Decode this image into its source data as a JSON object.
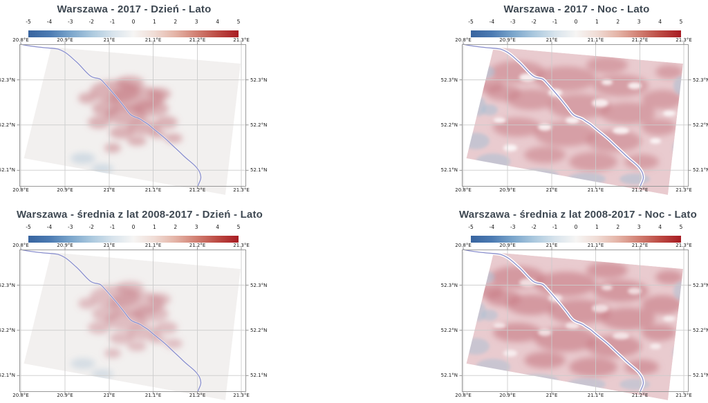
{
  "figure": {
    "panels": [
      {
        "title": "Warszawa - 2017 - Dzień - Lato",
        "variant": "day",
        "period": "2017",
        "time_of_day": "Dzień",
        "season": "Lato"
      },
      {
        "title": "Warszawa - 2017 - Noc - Lato",
        "variant": "night",
        "period": "2017",
        "time_of_day": "Noc",
        "season": "Lato"
      },
      {
        "title": "Warszawa - średnia z lat 2008-2017 - Dzień - Lato",
        "variant": "day",
        "period": "średnia z lat 2008-2017",
        "time_of_day": "Dzień",
        "season": "Lato"
      },
      {
        "title": "Warszawa - średnia z lat 2008-2017 - Noc - Lato",
        "variant": "night",
        "period": "średnia z lat 2008-2017",
        "time_of_day": "Noc",
        "season": "Lato"
      }
    ],
    "colorbar": {
      "ticks": [
        "-5",
        "-4",
        "-3",
        "-2",
        "-1",
        "0",
        "1",
        "2",
        "3",
        "4",
        "5"
      ]
    },
    "axes": {
      "lon_labels": [
        "20.8°E",
        "20.9°E",
        "21°E",
        "21.1°E",
        "21.2°E",
        "21.3°E"
      ],
      "lat_labels": [
        "52.3°N",
        "52.2°N",
        "52.1°N"
      ]
    }
  },
  "colors": {
    "background": "#ffffff",
    "title_text": "#3e4852",
    "tick_text": "#1a1a1a",
    "grid_line": "#cccccc",
    "plot_frame": "#999999",
    "river": "#8287c9",
    "colorbar_left_end": "#38649f",
    "colorbar_zero": "#f6f5f4",
    "colorbar_right_end": "#a81c23",
    "day_swath": "#f2f0ef",
    "night_swath": "#e9cbcf",
    "heat_pink": "#c4737d",
    "cool_blue": "#a9c0d4"
  },
  "chart_data": [
    {
      "type": "heatmap",
      "title": "Warszawa - 2017 - Dzień - Lato",
      "colorbar": {
        "range": [
          -5,
          5
        ],
        "ticks": [
          -5,
          -4,
          -3,
          -2,
          -1,
          0,
          1,
          2,
          3,
          4,
          5
        ],
        "colormap": "blue-white-red diverging (RdBu reversed)",
        "position": "top"
      },
      "x_axis": {
        "ticks": [
          "20.8°E",
          "20.9°E",
          "21°E",
          "21.1°E",
          "21.2°E",
          "21.3°E"
        ],
        "range_approx": [
          20.79,
          21.31
        ]
      },
      "y_axis": {
        "ticks": [
          "52.3°N",
          "52.2°N",
          "52.1°N"
        ],
        "range_approx": [
          52.05,
          52.37
        ]
      },
      "grid": true,
      "overlay": "Vistula river polyline crossing NW to SE",
      "pattern": "rotated satellite swath, mostly near 0; faint warm anomaly ≈ +0.5 to +1.5 clustered over central Warsaw"
    },
    {
      "type": "heatmap",
      "title": "Warszawa - 2017 - Noc - Lato",
      "colorbar": {
        "range": [
          -5,
          5
        ],
        "ticks": [
          -5,
          -4,
          -3,
          -2,
          -1,
          0,
          1,
          2,
          3,
          4,
          5
        ],
        "colormap": "blue-white-red diverging (RdBu reversed)",
        "position": "top"
      },
      "x_axis": {
        "ticks": [
          "20.8°E",
          "20.9°E",
          "21°E",
          "21.1°E",
          "21.2°E",
          "21.3°E"
        ],
        "range_approx": [
          20.79,
          21.31
        ]
      },
      "y_axis": {
        "ticks": [
          "52.3°N",
          "52.2°N",
          "52.1°N"
        ],
        "range_approx": [
          52.05,
          52.37
        ]
      },
      "grid": true,
      "overlay": "Vistula river polyline with pale corridor",
      "pattern": "widespread warm anomaly ≈ +1 to +2 over urban area; cool patches ≈ -1 near swath edges; white gaps along river"
    },
    {
      "type": "heatmap",
      "title": "Warszawa - średnia z lat 2008-2017 - Dzień - Lato",
      "colorbar": {
        "range": [
          -5,
          5
        ],
        "ticks": [
          -5,
          -4,
          -3,
          -2,
          -1,
          0,
          1,
          2,
          3,
          4,
          5
        ],
        "colormap": "blue-white-red diverging (RdBu reversed)",
        "position": "top"
      },
      "x_axis": {
        "ticks": [
          "20.8°E",
          "20.9°E",
          "21°E",
          "21.1°E",
          "21.2°E",
          "21.3°E"
        ],
        "range_approx": [
          20.79,
          21.31
        ]
      },
      "y_axis": {
        "ticks": [
          "52.3°N",
          "52.2°N",
          "52.1°N"
        ],
        "range_approx": [
          52.05,
          52.37
        ]
      },
      "grid": true,
      "overlay": "Vistula river polyline",
      "pattern": "very faint warm anomaly ≈ +0.5 over central Warsaw; remainder of swath near 0"
    },
    {
      "type": "heatmap",
      "title": "Warszawa - średnia z lat 2008-2017 - Noc - Lato",
      "colorbar": {
        "range": [
          -5,
          5
        ],
        "ticks": [
          -5,
          -4,
          -3,
          -2,
          -1,
          0,
          1,
          2,
          3,
          4,
          5
        ],
        "colormap": "blue-white-red diverging (RdBu reversed)",
        "position": "top"
      },
      "x_axis": {
        "ticks": [
          "20.8°E",
          "20.9°E",
          "21°E",
          "21.1°E",
          "21.2°E",
          "21.3°E"
        ],
        "range_approx": [
          20.79,
          21.31
        ]
      },
      "y_axis": {
        "ticks": [
          "52.3°N",
          "52.2°N",
          "52.1°N"
        ],
        "range_approx": [
          52.05,
          52.37
        ]
      },
      "grid": true,
      "overlay": "Vistula river polyline with pale corridor",
      "pattern": "strong widespread warm anomaly ≈ +1 to +2.5 across metro area; cool band ≈ -1 along southern and western edges"
    }
  ]
}
